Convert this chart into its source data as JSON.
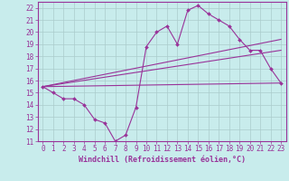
{
  "title": "",
  "xlabel": "Windchill (Refroidissement éolien,°C)",
  "ylabel": "",
  "xlim": [
    -0.5,
    23.5
  ],
  "ylim": [
    11,
    22.5
  ],
  "yticks": [
    11,
    12,
    13,
    14,
    15,
    16,
    17,
    18,
    19,
    20,
    21,
    22
  ],
  "xticks": [
    0,
    1,
    2,
    3,
    4,
    5,
    6,
    7,
    8,
    9,
    10,
    11,
    12,
    13,
    14,
    15,
    16,
    17,
    18,
    19,
    20,
    21,
    22,
    23
  ],
  "bg_color": "#c8ecec",
  "grid_color": "#aacccc",
  "line_color": "#993399",
  "series": {
    "zigzag": {
      "x": [
        0,
        1,
        2,
        3,
        4,
        5,
        6,
        7,
        8,
        9,
        10,
        11,
        12,
        13,
        14,
        15,
        16,
        17,
        18,
        19,
        20,
        21,
        22,
        23
      ],
      "y": [
        15.5,
        15.0,
        14.5,
        14.5,
        14.0,
        12.8,
        12.5,
        11.0,
        11.5,
        13.8,
        18.8,
        20.0,
        20.5,
        19.0,
        21.8,
        22.2,
        21.5,
        21.0,
        20.5,
        19.4,
        18.5,
        18.5,
        17.0,
        15.8
      ]
    },
    "upper_line": {
      "x": [
        0,
        23
      ],
      "y": [
        15.5,
        19.4
      ]
    },
    "mid_line": {
      "x": [
        0,
        23
      ],
      "y": [
        15.5,
        18.5
      ]
    },
    "lower_line": {
      "x": [
        0,
        23
      ],
      "y": [
        15.5,
        15.8
      ]
    }
  },
  "figsize": [
    3.2,
    2.0
  ],
  "dpi": 100
}
